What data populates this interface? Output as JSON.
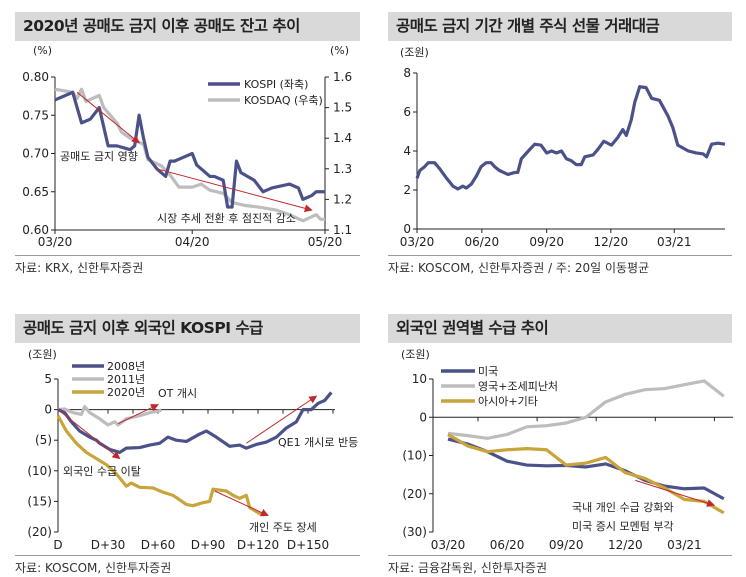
{
  "colors": {
    "navy": "#4b5189",
    "gray": "#bdbdbd",
    "gold": "#c9a43b",
    "arrow": "#c0282d",
    "title_bg": "#d9d9d9"
  },
  "chart_data": [
    {
      "id": "c1",
      "type": "line",
      "title": "2020년 공매도 금지 이후 공매도 잔고 추이",
      "source": "자료: KRX, 신한투자증권",
      "ylabel_left": "(%)",
      "ylabel_right": "(%)",
      "x_ticks": [
        "03/20",
        "04/20",
        "05/20"
      ],
      "x_tick_dates": [
        "2020-03-20",
        "2020-04-20",
        "2020-05-20"
      ],
      "xlim": [
        "2020-03-20",
        "2020-05-20"
      ],
      "ylim_left": [
        0.6,
        0.8
      ],
      "yticks_left": [
        "0.60",
        "0.65",
        "0.70",
        "0.75",
        "0.80"
      ],
      "ylim_right": [
        1.1,
        1.6
      ],
      "yticks_right": [
        "1.1",
        "1.2",
        "1.3",
        "1.4",
        "1.5",
        "1.6"
      ],
      "legend_placement": "top-right",
      "series": [
        {
          "name": "KOSPI (좌축)",
          "axis": "left",
          "color": "#4b5189",
          "x": [
            "2020-03-20",
            "2020-03-22",
            "2020-03-24",
            "2020-03-26",
            "2020-03-28",
            "2020-03-30",
            "2020-04-01",
            "2020-04-03",
            "2020-04-06",
            "2020-04-07",
            "2020-04-08",
            "2020-04-09",
            "2020-04-10",
            "2020-04-12",
            "2020-04-14",
            "2020-04-15",
            "2020-04-16",
            "2020-04-18",
            "2020-04-20",
            "2020-04-21",
            "2020-04-24",
            "2020-04-25",
            "2020-04-27",
            "2020-04-28",
            "2020-04-29",
            "2020-04-30",
            "2020-05-01",
            "2020-05-04",
            "2020-05-06",
            "2020-05-08",
            "2020-05-12",
            "2020-05-14",
            "2020-05-15",
            "2020-05-17",
            "2020-05-18",
            "2020-05-20"
          ],
          "y": [
            0.77,
            0.775,
            0.78,
            0.74,
            0.745,
            0.76,
            0.71,
            0.71,
            0.705,
            0.71,
            0.75,
            0.72,
            0.695,
            0.68,
            0.67,
            0.69,
            0.69,
            0.695,
            0.7,
            0.685,
            0.67,
            0.67,
            0.665,
            0.63,
            0.63,
            0.69,
            0.675,
            0.665,
            0.65,
            0.655,
            0.66,
            0.655,
            0.64,
            0.645,
            0.65,
            0.65
          ]
        },
        {
          "name": "KOSDAQ (우축)",
          "axis": "right",
          "color": "#bdbdbd",
          "x": [
            "2020-03-20",
            "2020-03-24",
            "2020-03-25",
            "2020-03-26",
            "2020-03-27",
            "2020-03-30",
            "2020-03-31",
            "2020-04-03",
            "2020-04-04",
            "2020-04-06",
            "2020-04-09",
            "2020-04-10",
            "2020-04-13",
            "2020-04-15",
            "2020-04-17",
            "2020-04-20",
            "2020-04-22",
            "2020-04-24",
            "2020-04-27",
            "2020-04-29",
            "2020-05-02",
            "2020-05-05",
            "2020-05-09",
            "2020-05-12",
            "2020-05-15",
            "2020-05-18",
            "2020-05-19",
            "2020-05-20"
          ],
          "y": [
            1.56,
            1.55,
            1.53,
            1.56,
            1.52,
            1.54,
            1.5,
            1.45,
            1.42,
            1.4,
            1.38,
            1.33,
            1.31,
            1.28,
            1.24,
            1.24,
            1.25,
            1.23,
            1.22,
            1.19,
            1.18,
            1.175,
            1.165,
            1.15,
            1.13,
            1.15,
            1.135,
            1.135
          ]
        }
      ],
      "annotations": [
        {
          "text": "공매도 금지 영향",
          "arrow_from": [
            "2020-03-25",
            0.78
          ],
          "arrow_to": [
            "2020-04-08",
            0.714
          ]
        },
        {
          "text": "시장 추세 전환 후 점진적 감소",
          "arrow_from": [
            "2020-04-12",
            0.68
          ],
          "arrow_to": [
            "2020-05-17",
            0.626
          ]
        }
      ]
    },
    {
      "id": "c2",
      "type": "line",
      "title": "공매도 금지 기간 개별 주식 선물 거래대금",
      "source": "자료: KOSCOM, 신한투자증권 / 주: 20일 이동평균",
      "ylabel_left": "(조원)",
      "x_ticks": [
        "03/20",
        "06/20",
        "09/20",
        "12/20",
        "03/21"
      ],
      "x_tick_dates": [
        "2020-03-20",
        "2020-06-20",
        "2020-09-20",
        "2020-12-20",
        "2021-03-20"
      ],
      "xlim": [
        "2020-03-20",
        "2021-05-31"
      ],
      "ylim_left": [
        0,
        8
      ],
      "yticks_left": [
        "0",
        "2",
        "4",
        "6",
        "8"
      ],
      "series": [
        {
          "color": "#4b5189",
          "x": [
            "2020-03-20",
            "2020-03-24",
            "2020-03-31",
            "2020-04-05",
            "2020-04-14",
            "2020-04-21",
            "2020-05-01",
            "2020-05-10",
            "2020-05-17",
            "2020-05-24",
            "2020-05-29",
            "2020-06-05",
            "2020-06-12",
            "2020-06-19",
            "2020-06-26",
            "2020-07-03",
            "2020-07-08",
            "2020-07-15",
            "2020-07-27",
            "2020-08-06",
            "2020-08-10",
            "2020-08-15",
            "2020-08-25",
            "2020-09-03",
            "2020-09-12",
            "2020-09-20",
            "2020-09-27",
            "2020-10-04",
            "2020-10-11",
            "2020-10-18",
            "2020-10-25",
            "2020-11-01",
            "2020-11-08",
            "2020-11-13",
            "2020-11-25",
            "2020-12-02",
            "2020-12-10",
            "2020-12-21",
            "2020-12-30",
            "2021-01-06",
            "2021-01-11",
            "2021-01-18",
            "2021-01-23",
            "2021-01-30",
            "2021-02-08",
            "2021-02-16",
            "2021-02-27",
            "2021-03-11",
            "2021-03-18",
            "2021-03-25",
            "2021-04-09",
            "2021-04-20",
            "2021-04-30",
            "2021-05-05",
            "2021-05-12",
            "2021-05-21",
            "2021-05-31"
          ],
          "y": [
            2.6,
            3.0,
            3.2,
            3.4,
            3.4,
            3.1,
            2.6,
            2.2,
            2.05,
            2.2,
            2.1,
            2.3,
            2.7,
            3.2,
            3.4,
            3.4,
            3.2,
            3.0,
            2.8,
            2.9,
            2.9,
            3.6,
            4.0,
            4.35,
            4.3,
            3.9,
            4.0,
            3.9,
            4.0,
            3.6,
            3.5,
            3.3,
            3.3,
            3.7,
            3.8,
            4.1,
            4.5,
            4.3,
            4.7,
            5.1,
            4.8,
            5.6,
            6.5,
            7.3,
            7.25,
            6.7,
            6.6,
            5.8,
            5.2,
            4.3,
            4.0,
            3.9,
            3.85,
            3.7,
            4.35,
            4.4,
            4.35
          ]
        }
      ]
    },
    {
      "id": "c3",
      "type": "line",
      "title": "공매도 금지 이후 외국인 KOSPI 수급",
      "source": "자료: KOSCOM, 신한투자증권",
      "ylabel_left": "(조원)",
      "x_ticks": [
        "D",
        "D+30",
        "D+60",
        "D+90",
        "D+120",
        "D+150"
      ],
      "x_tick_values": [
        0,
        30,
        60,
        90,
        120,
        150
      ],
      "xlim": [
        0,
        166
      ],
      "ylim_left": [
        -20,
        5
      ],
      "yticks_left": [
        "(20)",
        "(15)",
        "(10)",
        "(5)",
        "0",
        "5"
      ],
      "legend_placement": "top-left",
      "series": [
        {
          "name": "2008년",
          "color": "#4b5189",
          "x": [
            0,
            4,
            8,
            13,
            19,
            23,
            25,
            31,
            37,
            41,
            49,
            55,
            61,
            66,
            71,
            77,
            85,
            89,
            95,
            103,
            109,
            113,
            119,
            125,
            131,
            137,
            143,
            147,
            152,
            156,
            160,
            164
          ],
          "y": [
            0,
            -0.5,
            -2,
            -3.5,
            -4.5,
            -5,
            -5.5,
            -6.5,
            -7,
            -6.3,
            -6.2,
            -5.8,
            -5.5,
            -4.5,
            -5,
            -5.2,
            -4,
            -3.5,
            -4.5,
            -6,
            -5.8,
            -6.3,
            -5.7,
            -5.3,
            -4.5,
            -3,
            -2,
            0,
            0,
            1,
            1.5,
            2.8
          ]
        },
        {
          "name": "2011년",
          "color": "#bdbdbd",
          "x": [
            0,
            4,
            9,
            14,
            16,
            19,
            25,
            30,
            34,
            36,
            41,
            49,
            55,
            61,
            62
          ],
          "y": [
            0,
            0.1,
            -0.5,
            -0.8,
            0.5,
            -0.5,
            -1.5,
            -2.5,
            -2,
            -2.5,
            -1.5,
            -1,
            -0.5,
            -0.2,
            0
          ]
        },
        {
          "name": "2020년",
          "color": "#c9a43b",
          "x": [
            0,
            5,
            11,
            17,
            23,
            29,
            35,
            41,
            44,
            49,
            57,
            63,
            69,
            77,
            81,
            87,
            91,
            93,
            101,
            105,
            109,
            113,
            115,
            121,
            124
          ],
          "y": [
            -1,
            -3.5,
            -5.5,
            -7,
            -8,
            -9,
            -10.5,
            -12.5,
            -12,
            -12.7,
            -12.8,
            -13.5,
            -14,
            -15.5,
            -15.7,
            -15.2,
            -15,
            -13,
            -13.3,
            -14,
            -14.5,
            -14,
            -16,
            -17,
            -17.2
          ]
        }
      ],
      "annotations": [
        {
          "text": "외국인 수급 이탈",
          "arrow_from": [
            0,
            0
          ],
          "arrow_to": [
            37,
            -8
          ]
        },
        {
          "text": "OT 개시",
          "arrow_from": [
            36,
            -2.3
          ],
          "arrow_to": [
            60,
            0.8
          ]
        },
        {
          "text": "QE1 개시로 반등",
          "arrow_from": [
            113,
            -5.5
          ],
          "arrow_to": [
            155,
            2.2
          ]
        },
        {
          "text": "개인 주도 장세",
          "arrow_from": [
            94,
            -13.3
          ],
          "arrow_to": [
            126,
            -17.3
          ]
        }
      ]
    },
    {
      "id": "c4",
      "type": "line",
      "title": "외국인 권역별 수급 추이",
      "source": "자료: 금융감독원, 신한투자증권",
      "ylabel_left": "(조원)",
      "x_ticks": [
        "03/20",
        "06/20",
        "09/20",
        "12/20",
        "03/21"
      ],
      "x_tick_values": [
        "2020-03",
        "2020-06",
        "2020-09",
        "2020-12",
        "2021-03"
      ],
      "x": [
        "2020-03",
        "2020-04",
        "2020-05",
        "2020-06",
        "2020-07",
        "2020-08",
        "2020-09",
        "2020-10",
        "2020-11",
        "2020-12",
        "2021-01",
        "2021-02",
        "2021-03",
        "2021-04",
        "2021-05"
      ],
      "ylim_left": [
        -30,
        10
      ],
      "yticks_left": [
        "(30)",
        "(20)",
        "(10)",
        "0",
        "10"
      ],
      "legend_placement": "top-left",
      "series": [
        {
          "name": "미국",
          "color": "#4b5189",
          "y": [
            -5.7,
            -7,
            -9,
            -11.5,
            -12.5,
            -12.7,
            -12.6,
            -13,
            -12.2,
            -14,
            -16.5,
            -18,
            -18.7,
            -18.5,
            -21.3
          ]
        },
        {
          "name": "영국+조세피난처",
          "color": "#bdbdbd",
          "y": [
            -4.2,
            -4.8,
            -5.5,
            -4.5,
            -2.5,
            -2.2,
            -1.5,
            0,
            4,
            6,
            7.2,
            7.5,
            8.5,
            9.5,
            5.5
          ]
        },
        {
          "name": "아시아+기타",
          "color": "#c9a43b",
          "y": [
            -4.5,
            -7.5,
            -9,
            -8.5,
            -8.2,
            -8.5,
            -12.5,
            -12,
            -10.5,
            -14.5,
            -16,
            -18.5,
            -21.5,
            -22,
            -25
          ]
        }
      ],
      "annotations": [
        {
          "text": "국내 개인 수급 강화와",
          "arrow_from": [
            "2020-12",
            -16.5
          ],
          "arrow_to": [
            "2021-04",
            -23
          ]
        },
        {
          "text": "미국 증시 모멘텀 부각"
        }
      ]
    }
  ]
}
